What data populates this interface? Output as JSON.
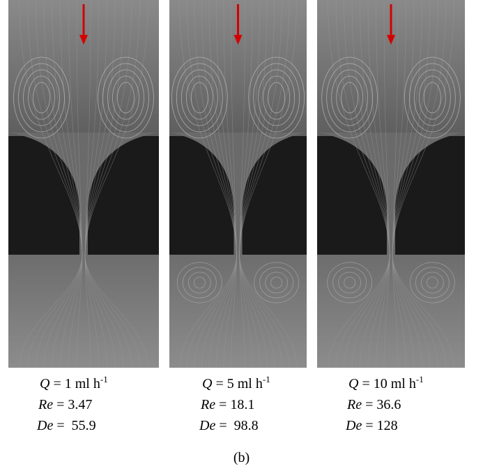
{
  "figure_label": "(b)",
  "panels": [
    {
      "flow": {
        "symbol": "Q",
        "value": "= 1 ml h",
        "exponent": "-1"
      },
      "re": {
        "symbol": "Re",
        "value": "= 3.47"
      },
      "de": {
        "symbol": "De",
        "value": "=  55.9"
      }
    },
    {
      "flow": {
        "symbol": "Q",
        "value": "= 5 ml h",
        "exponent": "-1"
      },
      "re": {
        "symbol": "Re",
        "value": "= 18.1"
      },
      "de": {
        "symbol": "De",
        "value": "=  98.8"
      }
    },
    {
      "flow": {
        "symbol": "Q",
        "value": "= 10 ml h",
        "exponent": "-1"
      },
      "re": {
        "symbol": "Re",
        "value": "= 36.6"
      },
      "de": {
        "symbol": "De",
        "value": "= 128"
      }
    }
  ]
}
